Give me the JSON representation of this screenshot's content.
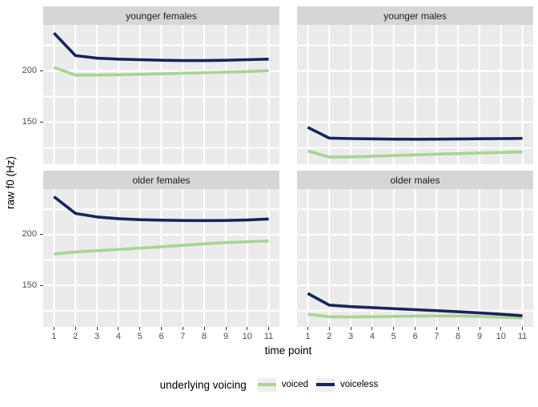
{
  "chart_data": {
    "type": "line",
    "title": "",
    "xlabel": "time point",
    "ylabel": "raw f0 (Hz)",
    "x": [
      1,
      2,
      3,
      4,
      5,
      6,
      7,
      8,
      9,
      10,
      11
    ],
    "ylim": [
      109,
      245
    ],
    "yticks": [
      150,
      200
    ],
    "y_gridlines": [
      125,
      150,
      175,
      200,
      225
    ],
    "grid": true,
    "facet_layout": "2x2",
    "legend": {
      "title": "underlying voicing",
      "position": "bottom",
      "entries": [
        {
          "label": "voiced",
          "color": "#a8d494"
        },
        {
          "label": "voiceless",
          "color": "#16255c"
        }
      ]
    },
    "facets": [
      {
        "title": "younger females",
        "series": [
          {
            "name": "voiced",
            "values": [
              203.5,
              196,
              196,
              196.3,
              196.8,
              197.3,
              197.8,
              198.3,
              198.8,
              199.3,
              200.3
            ]
          },
          {
            "name": "voiceless",
            "values": [
              237,
              215,
              212.5,
              211.5,
              211,
              210.5,
              210.2,
              210.2,
              210.5,
              211,
              211.5
            ]
          }
        ]
      },
      {
        "title": "younger males",
        "series": [
          {
            "name": "voiced",
            "values": [
              122,
              116,
              116.2,
              116.8,
              117.5,
              118.2,
              118.8,
              119.4,
              120,
              120.5,
              121
            ]
          },
          {
            "name": "voiceless",
            "values": [
              145,
              134.5,
              134,
              133.8,
              133.5,
              133.4,
              133.5,
              133.7,
              133.9,
              134,
              134.2
            ]
          }
        ]
      },
      {
        "title": "older females",
        "series": [
          {
            "name": "voiced",
            "values": [
              181,
              183,
              184.2,
              185.4,
              186.7,
              188,
              189.5,
              191,
              192.2,
              193,
              193.8
            ]
          },
          {
            "name": "voiceless",
            "values": [
              237.5,
              221,
              217.5,
              215.8,
              214.8,
              214.3,
              214,
              213.9,
              214,
              214.5,
              215.5
            ]
          }
        ]
      },
      {
        "title": "older males",
        "series": [
          {
            "name": "voiced",
            "values": [
              121.5,
              119,
              118.8,
              119,
              119.3,
              119.6,
              119.8,
              119.8,
              119.3,
              118.5,
              117.8
            ]
          },
          {
            "name": "voiceless",
            "values": [
              142,
              130.5,
              129,
              128,
              127,
              126,
              125,
              124,
              122.8,
              121.5,
              120
            ]
          }
        ]
      }
    ],
    "colors": {
      "panel_bg": "#ebebeb",
      "strip_bg": "#d6d6d6",
      "gridline": "#ffffff",
      "tick_text": "#4d4d4d"
    }
  }
}
